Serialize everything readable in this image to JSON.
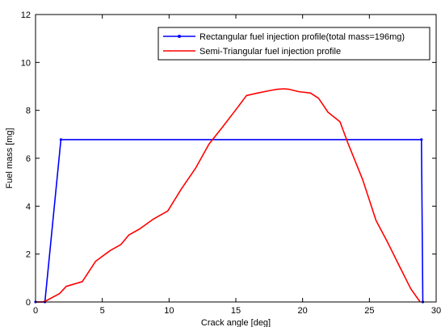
{
  "chart_data": {
    "type": "line",
    "xlabel": "Crack angle [deg]",
    "ylabel": "Fuel mass [mg]",
    "xlim": [
      0,
      30
    ],
    "ylim": [
      0,
      12
    ],
    "xticks": [
      0,
      5,
      10,
      15,
      20,
      25,
      30
    ],
    "yticks": [
      0,
      2,
      4,
      6,
      8,
      10,
      12
    ],
    "grid": false,
    "legend_position": "top-right",
    "series": [
      {
        "name": "Rectangular fuel injection profile(total mass=196mg)",
        "color": "#0000ff",
        "marker": "dot",
        "x": [
          0,
          0.7,
          1.9,
          28.9,
          29.0
        ],
        "y": [
          0,
          0,
          6.78,
          6.78,
          0
        ]
      },
      {
        "name": "Semi-Triangular fuel injection profile",
        "color": "#ff0000",
        "marker": "none",
        "x": [
          0,
          0.5,
          0.8,
          1.8,
          2.3,
          3.5,
          4.5,
          5.6,
          6.4,
          7.0,
          7.8,
          8.8,
          9.9,
          10.9,
          12.0,
          13.0,
          14.0,
          15.1,
          15.8,
          16.6,
          17.6,
          18.1,
          18.6,
          19.0,
          19.7,
          20.6,
          21.2,
          21.9,
          22.8,
          23.4,
          24.5,
          25.5,
          26.4,
          27.2,
          28.1,
          28.8
        ],
        "y": [
          0,
          0,
          0.05,
          0.35,
          0.65,
          0.85,
          1.7,
          2.15,
          2.4,
          2.8,
          3.05,
          3.45,
          3.8,
          4.7,
          5.6,
          6.6,
          7.3,
          8.1,
          8.62,
          8.72,
          8.83,
          8.88,
          8.9,
          8.88,
          8.78,
          8.72,
          8.5,
          7.92,
          7.52,
          6.62,
          5.1,
          3.4,
          2.45,
          1.55,
          0.55,
          0
        ]
      }
    ]
  }
}
